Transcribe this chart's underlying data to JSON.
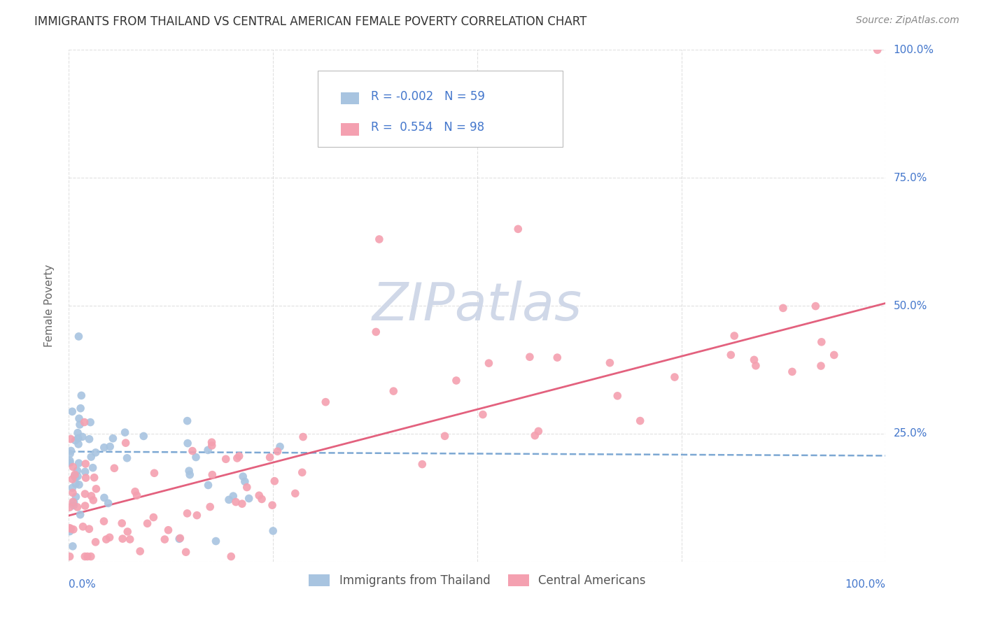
{
  "title": "IMMIGRANTS FROM THAILAND VS CENTRAL AMERICAN FEMALE POVERTY CORRELATION CHART",
  "source": "Source: ZipAtlas.com",
  "ylabel": "Female Poverty",
  "xlim": [
    0.0,
    1.0
  ],
  "ylim": [
    0.0,
    1.0
  ],
  "thailand_color": "#a8c4e0",
  "central_color": "#f4a0b0",
  "thailand_line_color": "#6699cc",
  "central_line_color": "#e05070",
  "thailand_R": -0.002,
  "thailand_N": 59,
  "central_R": 0.554,
  "central_N": 98,
  "watermark": "ZIPatlas",
  "legend_label_thailand": "Immigrants from Thailand",
  "legend_label_central": "Central Americans",
  "background_color": "#ffffff",
  "grid_color": "#cccccc",
  "title_color": "#333333",
  "axis_label_color": "#4477cc",
  "watermark_color": "#d0d8e8",
  "thailand_line_intercept": 0.215,
  "thailand_line_slope": -0.008,
  "central_line_intercept": 0.09,
  "central_line_slope": 0.415
}
